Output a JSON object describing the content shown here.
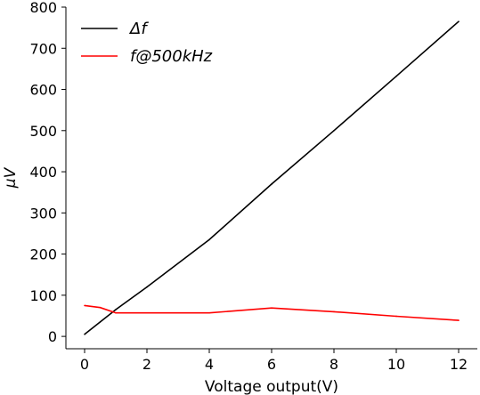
{
  "chart_data": {
    "type": "line",
    "title": "",
    "xlabel": "Voltage output(V)",
    "ylabel": "μV",
    "xlim": [
      -0.6,
      12.6
    ],
    "ylim": [
      -30,
      800
    ],
    "xticks": [
      0,
      2,
      4,
      6,
      8,
      10,
      12
    ],
    "yticks": [
      0,
      100,
      200,
      300,
      400,
      500,
      600,
      700,
      800
    ],
    "grid": false,
    "legend_position": "top-left",
    "series": [
      {
        "name": "Δf",
        "color": "#000000",
        "x": [
          0,
          0.5,
          1,
          2,
          4,
          6,
          8,
          10,
          12
        ],
        "y": [
          5,
          35,
          65,
          120,
          235,
          370,
          500,
          632,
          765
        ]
      },
      {
        "name": "f@500kHz",
        "color": "#ff0000",
        "x": [
          0,
          0.5,
          1,
          2,
          4,
          6,
          8,
          10,
          12
        ],
        "y": [
          75,
          70,
          57,
          57,
          57,
          69,
          60,
          49,
          39
        ]
      }
    ]
  }
}
